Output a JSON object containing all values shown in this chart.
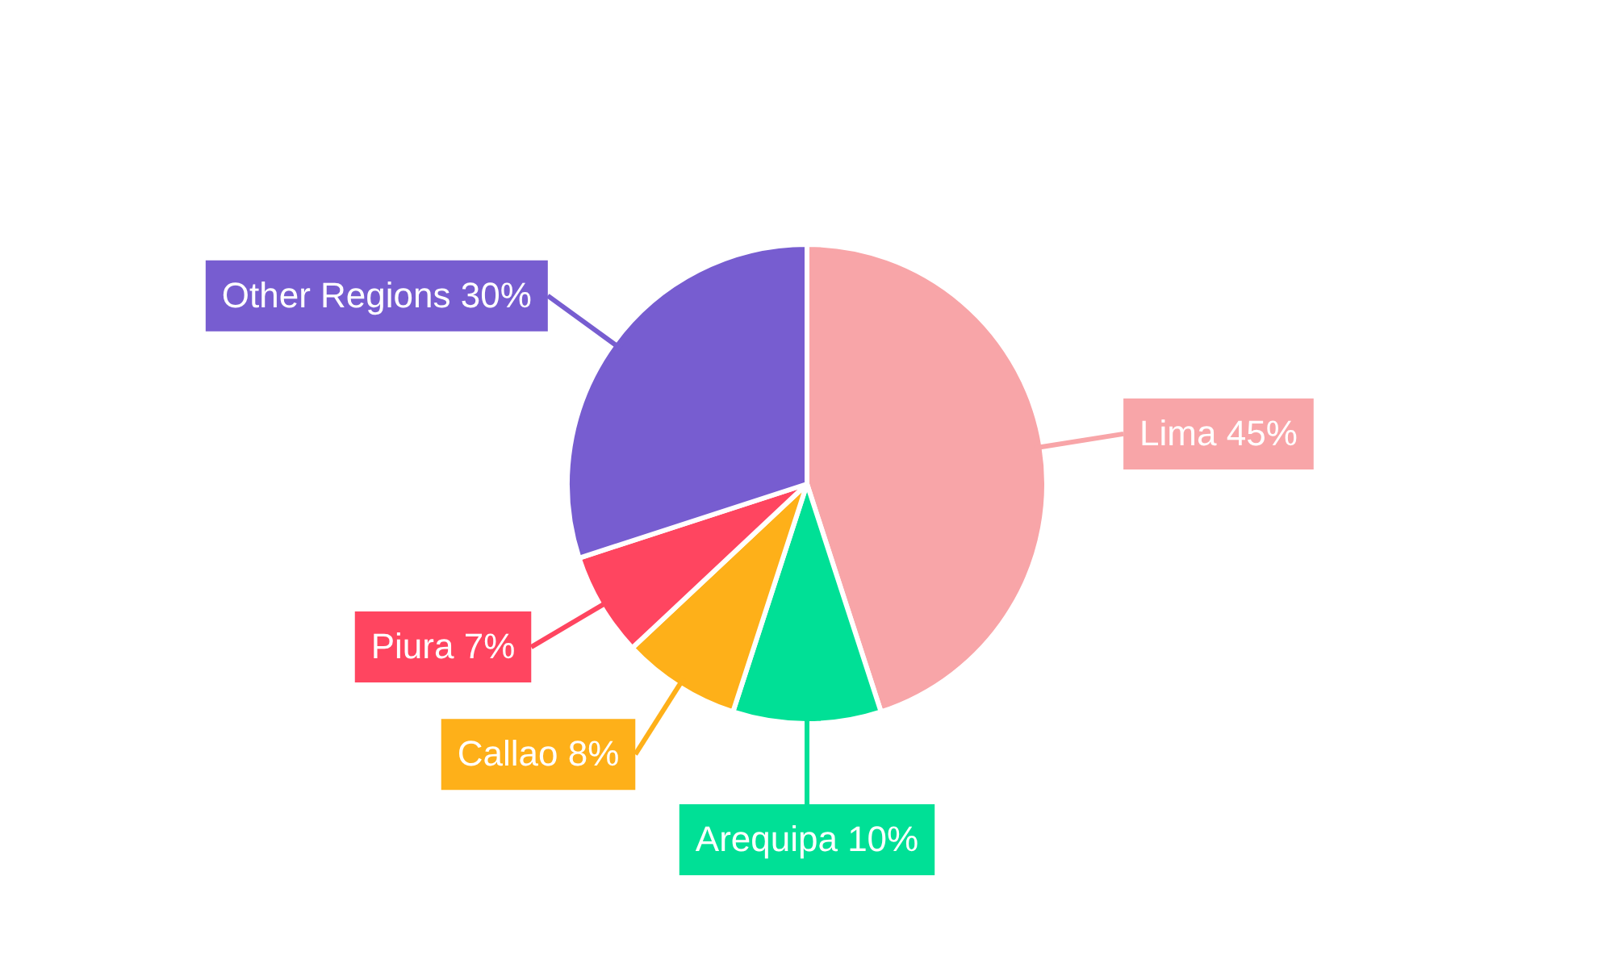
{
  "chart_data": {
    "type": "pie",
    "categories": [
      "Lima",
      "Arequipa",
      "Callao",
      "Piura",
      "Other Regions"
    ],
    "values": [
      45,
      10,
      8,
      7,
      30
    ],
    "value_labels": [
      "45%",
      "10%",
      "8%",
      "7%",
      "30%"
    ],
    "colors": [
      "#f8a5a8",
      "#00e096",
      "#feb019",
      "#ff4560",
      "#775dd0"
    ],
    "legend": false
  }
}
